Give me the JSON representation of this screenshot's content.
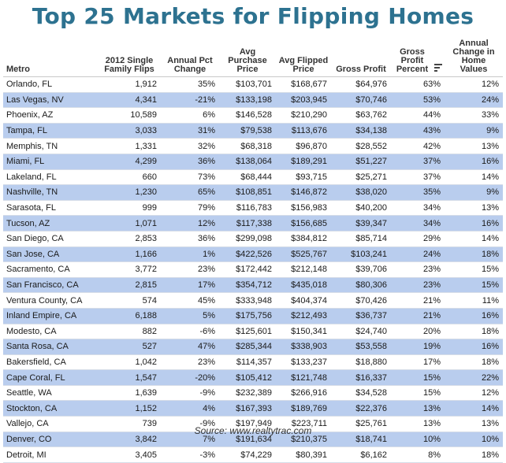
{
  "title": "Top 25 Markets for Flipping Homes",
  "source": "Source: www.realtytrac.com",
  "columns": [
    "Metro",
    "2012 Single Family Flips",
    "Annual Pct Change",
    "Avg Purchase Price",
    "Avg Flipped Price",
    "Gross Profit",
    "Gross Profit Percent",
    "Annual Change in Home Values"
  ],
  "sort_icon": "sort-descending-icon",
  "colors": {
    "title": "#2d7290",
    "band": "#b9cdee"
  },
  "rows": [
    [
      "Orlando, FL",
      "1,912",
      "35%",
      "$103,701",
      "$168,677",
      "$64,976",
      "63%",
      "12%"
    ],
    [
      "Las Vegas, NV",
      "4,341",
      "-21%",
      "$133,198",
      "$203,945",
      "$70,746",
      "53%",
      "24%"
    ],
    [
      "Phoenix, AZ",
      "10,589",
      "6%",
      "$146,528",
      "$210,290",
      "$63,762",
      "44%",
      "33%"
    ],
    [
      "Tampa, FL",
      "3,033",
      "31%",
      "$79,538",
      "$113,676",
      "$34,138",
      "43%",
      "9%"
    ],
    [
      "Memphis, TN",
      "1,331",
      "32%",
      "$68,318",
      "$96,870",
      "$28,552",
      "42%",
      "13%"
    ],
    [
      "Miami, FL",
      "4,299",
      "36%",
      "$138,064",
      "$189,291",
      "$51,227",
      "37%",
      "16%"
    ],
    [
      "Lakeland, FL",
      "660",
      "73%",
      "$68,444",
      "$93,715",
      "$25,271",
      "37%",
      "14%"
    ],
    [
      "Nashville, TN",
      "1,230",
      "65%",
      "$108,851",
      "$146,872",
      "$38,020",
      "35%",
      "9%"
    ],
    [
      "Sarasota, FL",
      "999",
      "79%",
      "$116,783",
      "$156,983",
      "$40,200",
      "34%",
      "13%"
    ],
    [
      "Tucson, AZ",
      "1,071",
      "12%",
      "$117,338",
      "$156,685",
      "$39,347",
      "34%",
      "16%"
    ],
    [
      "San Diego, CA",
      "2,853",
      "36%",
      "$299,098",
      "$384,812",
      "$85,714",
      "29%",
      "14%"
    ],
    [
      "San Jose, CA",
      "1,166",
      "1%",
      "$422,526",
      "$525,767",
      "$103,241",
      "24%",
      "18%"
    ],
    [
      "Sacramento, CA",
      "3,772",
      "23%",
      "$172,442",
      "$212,148",
      "$39,706",
      "23%",
      "15%"
    ],
    [
      "San Francisco, CA",
      "2,815",
      "17%",
      "$354,712",
      "$435,018",
      "$80,306",
      "23%",
      "15%"
    ],
    [
      "Ventura County, CA",
      "574",
      "45%",
      "$333,948",
      "$404,374",
      "$70,426",
      "21%",
      "11%"
    ],
    [
      "Inland Empire, CA",
      "6,188",
      "5%",
      "$175,756",
      "$212,493",
      "$36,737",
      "21%",
      "16%"
    ],
    [
      "Modesto, CA",
      "882",
      "-6%",
      "$125,601",
      "$150,341",
      "$24,740",
      "20%",
      "18%"
    ],
    [
      "Santa Rosa, CA",
      "527",
      "47%",
      "$285,344",
      "$338,903",
      "$53,558",
      "19%",
      "16%"
    ],
    [
      "Bakersfield, CA",
      "1,042",
      "23%",
      "$114,357",
      "$133,237",
      "$18,880",
      "17%",
      "18%"
    ],
    [
      "Cape Coral, FL",
      "1,547",
      "-20%",
      "$105,412",
      "$121,748",
      "$16,337",
      "15%",
      "22%"
    ],
    [
      "Seattle, WA",
      "1,639",
      "-9%",
      "$232,389",
      "$266,916",
      "$34,528",
      "15%",
      "12%"
    ],
    [
      "Stockton, CA",
      "1,152",
      "4%",
      "$167,393",
      "$189,769",
      "$22,376",
      "13%",
      "14%"
    ],
    [
      "Vallejo, CA",
      "739",
      "-9%",
      "$197,949",
      "$223,711",
      "$25,761",
      "13%",
      "13%"
    ],
    [
      "Denver, CO",
      "3,842",
      "7%",
      "$191,634",
      "$210,375",
      "$18,741",
      "10%",
      "10%"
    ],
    [
      "Detroit, MI",
      "3,405",
      "-3%",
      "$74,229",
      "$80,391",
      "$6,162",
      "8%",
      "18%"
    ]
  ]
}
